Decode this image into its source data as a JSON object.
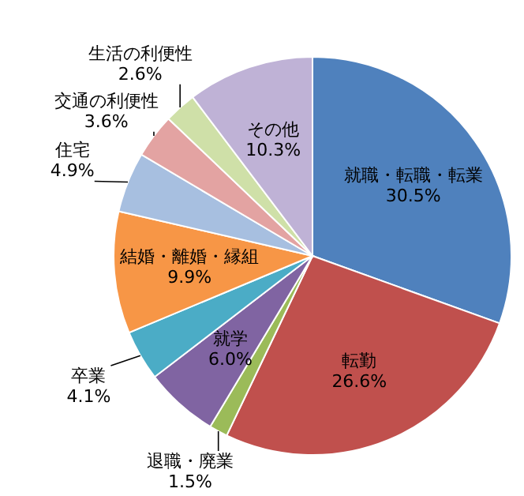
{
  "chart_data": {
    "type": "pie",
    "categories": [
      "就職・転職・転業",
      "転勤",
      "退職・廃業",
      "就学",
      "卒業",
      "結婚・離婚・縁組",
      "住宅",
      "交通の利便性",
      "生活の利便性",
      "その他"
    ],
    "values": [
      30.5,
      26.6,
      1.5,
      6.0,
      4.1,
      9.9,
      4.9,
      3.6,
      2.6,
      10.3
    ],
    "colors": [
      "#4f81bd",
      "#c0504d",
      "#9bbb59",
      "#8064a2",
      "#4bacc6",
      "#f79646",
      "#a7bfe0",
      "#e3a3a2",
      "#cfe0a8",
      "#bfb2d6"
    ],
    "value_labels": [
      "30.5%",
      "26.6%",
      "1.5%",
      "6.0%",
      "4.1%",
      "9.9%",
      "4.9%",
      "3.6%",
      "2.6%",
      "10.3%"
    ]
  }
}
